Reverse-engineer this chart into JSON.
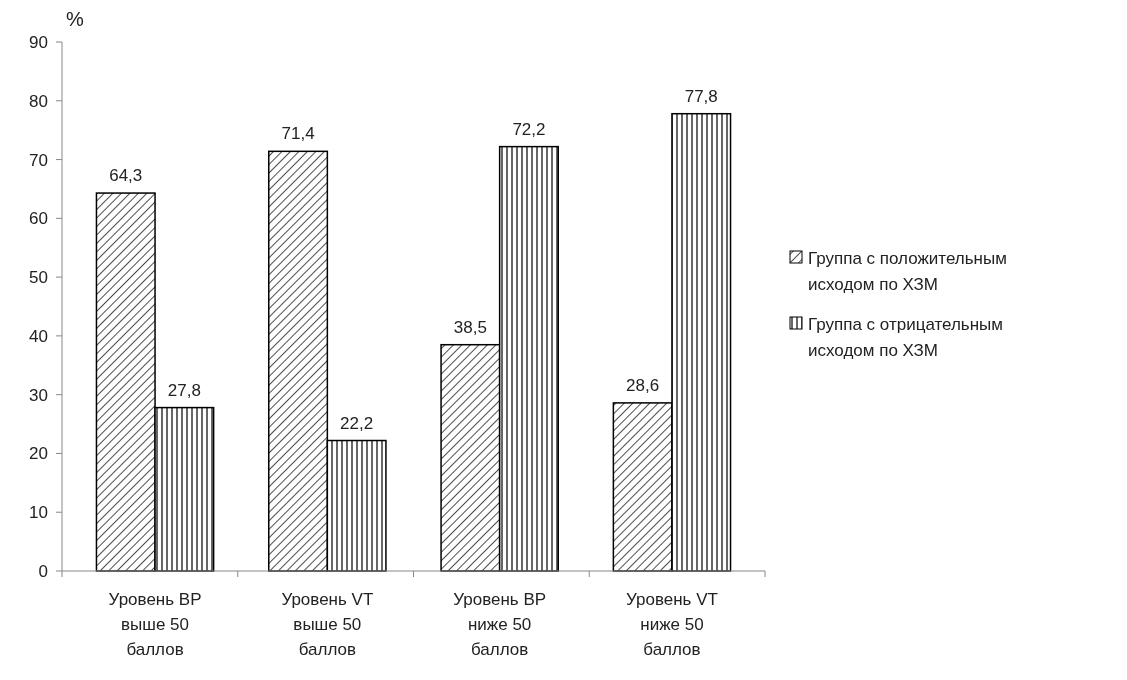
{
  "chart_data": {
    "type": "bar",
    "ylabel": "%",
    "categories": [
      "Уровень ВР выше 50 баллов",
      "Уровень VT выше 50 баллов",
      "Уровень ВР ниже 50 баллов",
      "Уровень VT ниже 50 баллов"
    ],
    "series": [
      {
        "name": "Группа с положительным исходом по ХЗМ",
        "color": "#000000",
        "values": [
          64.3,
          71.4,
          38.5,
          28.6
        ],
        "value_labels": [
          "64,3",
          "71,4",
          "38,5",
          "28,6"
        ]
      },
      {
        "name": "Группа с отрицательным исходом по ХЗМ",
        "color": "#000000",
        "values": [
          27.8,
          22.2,
          72.2,
          77.8
        ],
        "value_labels": [
          "27,8",
          "22,2",
          "72,2",
          "77,8"
        ]
      }
    ],
    "ylim": [
      0,
      90
    ],
    "yticks": [
      0,
      10,
      20,
      30,
      40,
      50,
      60,
      70,
      80,
      90
    ],
    "legend": "right",
    "grid": false
  }
}
